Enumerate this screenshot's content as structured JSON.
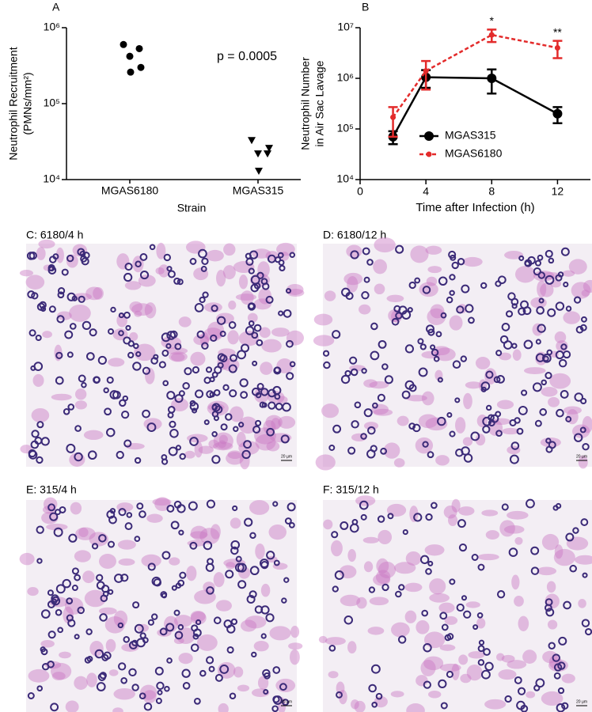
{
  "panels": {
    "a": "A",
    "b": "B"
  },
  "chart_data": [
    {
      "type": "scatter",
      "ylabel": [
        "Neutrophil Recruitment",
        "(PMNs/mm²)"
      ],
      "xlabel": "Strain",
      "categories": [
        "MGAS6180",
        "MGAS315"
      ],
      "values": [
        [
          600000,
          530000,
          420000,
          300000,
          260000
        ],
        [
          33000,
          22000,
          22000,
          26000,
          13000
        ]
      ],
      "markers": [
        "circle",
        "triangle"
      ],
      "color": "#000000",
      "log_y": true,
      "ylim": [
        10000,
        1000000
      ],
      "yticks": [
        {
          "value": 10000,
          "label": "10⁴"
        },
        {
          "value": 100000,
          "label": "10⁵"
        },
        {
          "value": 1000000,
          "label": "10⁶"
        }
      ],
      "annotation": "p = 0.0005"
    },
    {
      "type": "line",
      "ylabel": [
        "Neutrophil Number",
        "in Air Sac Lavage"
      ],
      "xlabel": "Time after Infection (h)",
      "x": [
        2,
        4,
        8,
        12
      ],
      "xlim": [
        0,
        14
      ],
      "xticks": [
        0,
        4,
        8,
        12
      ],
      "log_y": true,
      "ylim": [
        10000,
        10000000
      ],
      "yticks": [
        {
          "value": 10000,
          "label": "10⁴"
        },
        {
          "value": 100000,
          "label": "10⁵"
        },
        {
          "value": 1000000,
          "label": "10⁶"
        },
        {
          "value": 10000000,
          "label": "10⁷"
        }
      ],
      "series": [
        {
          "name": "MGAS315",
          "color": "#000000",
          "dashed": false,
          "values": [
            70000,
            1050000,
            1000000,
            200000
          ],
          "errors": [
            20000,
            400000,
            500000,
            70000
          ]
        },
        {
          "name": "MGAS6180",
          "color": "#e32b2b",
          "dashed": true,
          "values": [
            170000,
            1400000,
            7200000,
            4000000
          ],
          "errors": [
            100000,
            800000,
            2000000,
            1500000
          ]
        }
      ],
      "annotations": [
        {
          "x": 8,
          "text": "*"
        },
        {
          "x": 12,
          "text": "**"
        }
      ],
      "legend": "right"
    }
  ],
  "images": [
    {
      "caption": "C: 6180/4 h",
      "scale_bar": "20 µm"
    },
    {
      "caption": "D: 6180/12 h",
      "scale_bar": "20 µm"
    },
    {
      "caption": "E: 315/4 h",
      "scale_bar": "20 µm"
    },
    {
      "caption": "F: 315/12 h",
      "scale_bar": "20 µm"
    }
  ]
}
